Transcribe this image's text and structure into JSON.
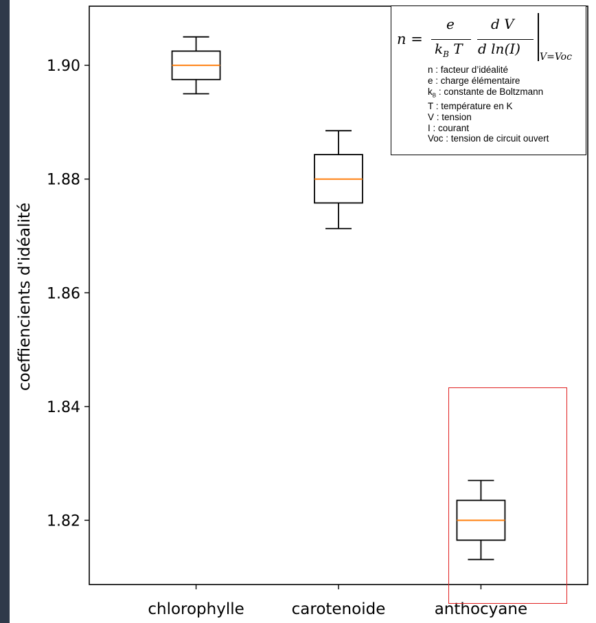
{
  "chart_data": {
    "type": "box",
    "title": "",
    "xlabel": "",
    "ylabel": "coeffiencients d'idéalité",
    "ylim": [
      1.8087,
      1.9104
    ],
    "yticks": [
      "1.82",
      "1.84",
      "1.86",
      "1.88",
      "1.90"
    ],
    "categories": [
      "chlorophylle",
      "carotenoide",
      "anthocyane"
    ],
    "boxes": [
      {
        "category": "chlorophylle",
        "whisker_low": 1.895,
        "q1": 1.8975,
        "median": 1.9,
        "q3": 1.9025,
        "whisker_high": 1.905
      },
      {
        "category": "carotenoide",
        "whisker_low": 1.8713,
        "q1": 1.8758,
        "median": 1.88,
        "q3": 1.8843,
        "whisker_high": 1.8885
      },
      {
        "category": "anthocyane",
        "whisker_low": 1.8131,
        "q1": 1.8165,
        "median": 1.82,
        "q3": 1.8235,
        "whisker_high": 1.827
      }
    ],
    "grid": false,
    "colors": {
      "box": "#000000",
      "median": "#ff7f0e",
      "highlight": "#e02020"
    },
    "highlighted_category": "anthocyane"
  },
  "legend_box": {
    "formula": {
      "lhs": "n =",
      "frac1_num": "e",
      "frac1_den": "k",
      "frac1_den_sub": "B",
      "frac1_den_tail": " T",
      "frac2_num": "d V",
      "frac2_den": "d ln(I)",
      "eval_sub": "V=Voc"
    },
    "lines": [
      {
        "text": "n : facteur d’idéalité"
      },
      {
        "text": "e : charge élémentaire"
      },
      {
        "pre": "k",
        "sub": "B",
        "text": " : constante de Boltzmann"
      },
      {
        "text": "T : température en K"
      },
      {
        "text": "V : tension"
      },
      {
        "text": "I : courant"
      },
      {
        "text": "Voc : tension de circuit ouvert"
      }
    ]
  }
}
